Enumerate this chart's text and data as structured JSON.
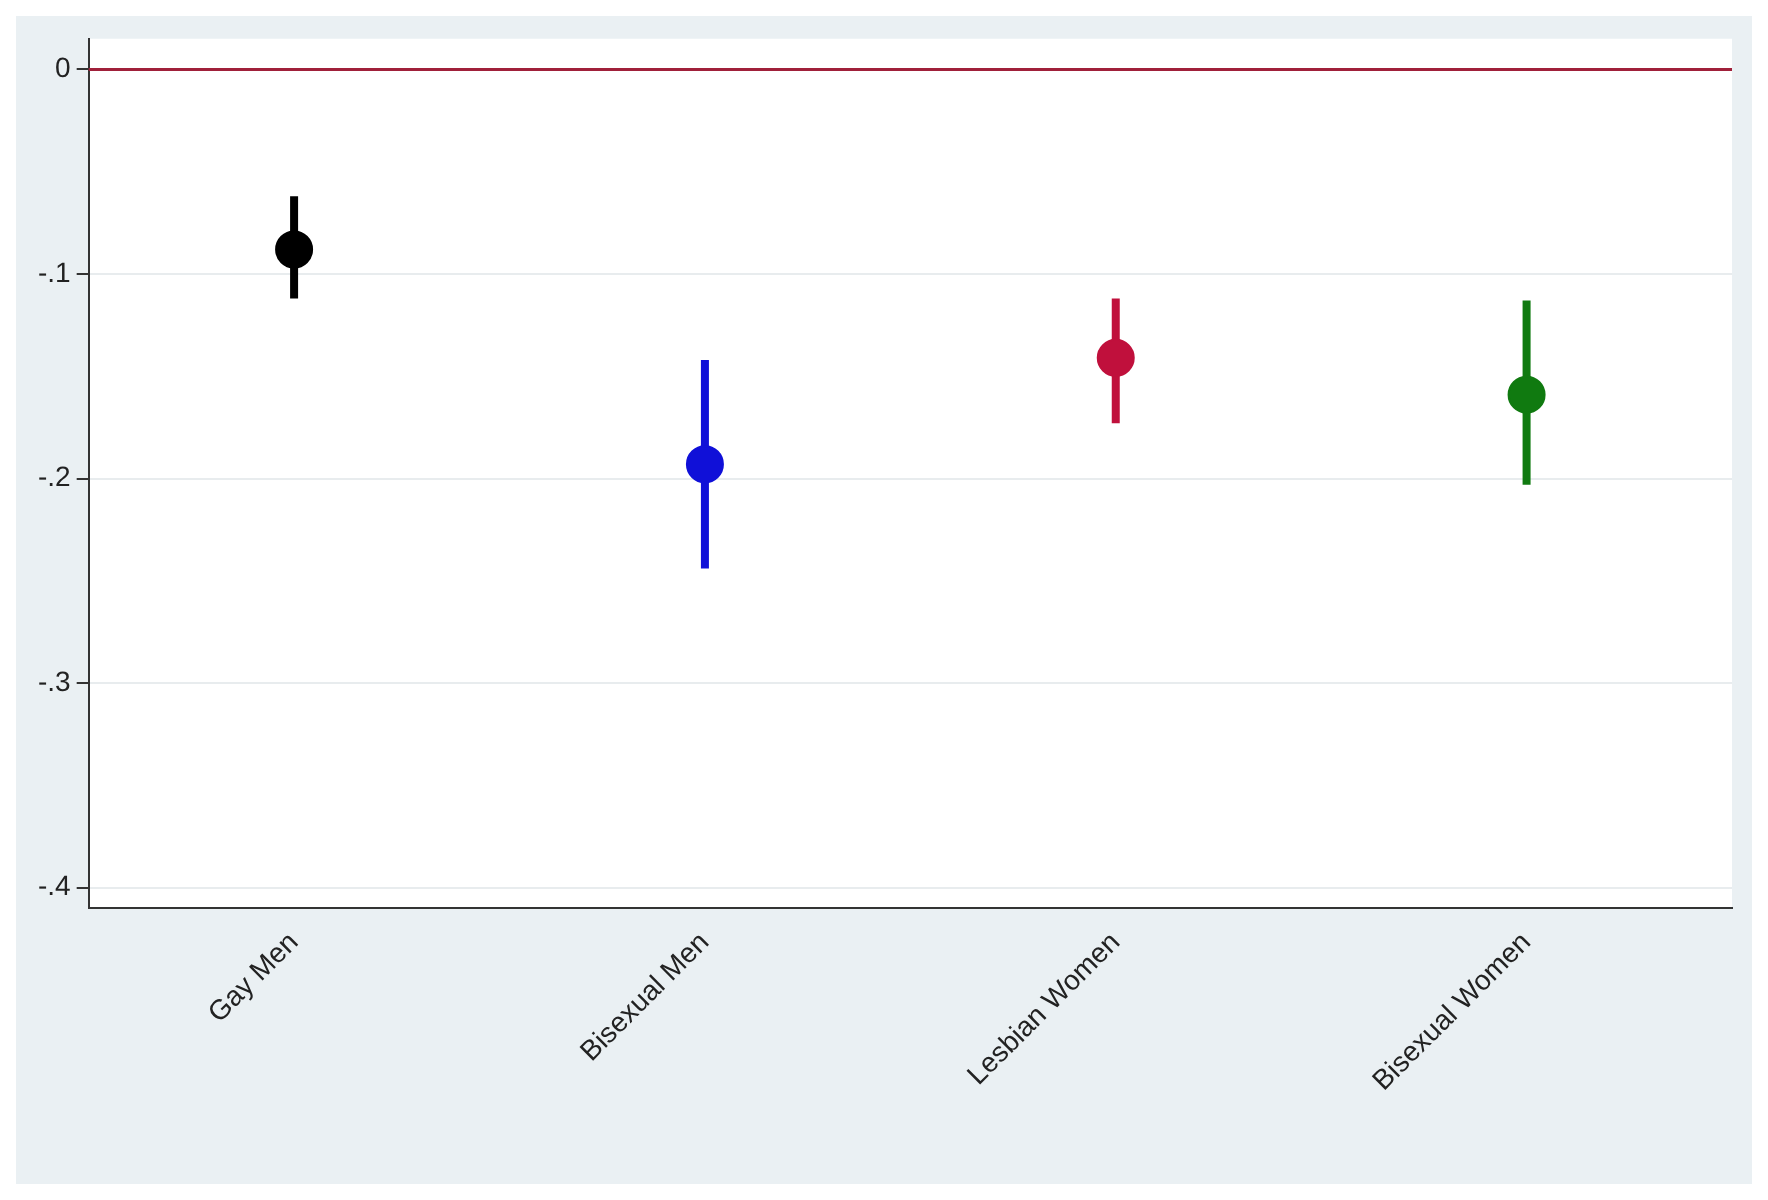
{
  "chart_data": {
    "type": "scatter",
    "categories": [
      "Gay Men",
      "Bisexual Men",
      "Lesbian Women",
      "Bisexual Women"
    ],
    "values": [
      -0.088,
      -0.193,
      -0.141,
      -0.159
    ],
    "colors": [
      "#000000",
      "#1010d8",
      "#c0103c",
      "#107a10"
    ],
    "errors": [
      [
        -0.112,
        -0.062
      ],
      [
        -0.244,
        -0.142
      ],
      [
        -0.173,
        -0.112
      ],
      [
        -0.203,
        -0.113
      ]
    ],
    "ylim": [
      -0.41,
      0.015
    ],
    "yticks": [
      {
        "value": 0,
        "label": "0"
      },
      {
        "value": -0.1,
        "label": "-.1"
      },
      {
        "value": -0.2,
        "label": "-.2"
      },
      {
        "value": -0.3,
        "label": "-.3"
      },
      {
        "value": -0.4,
        "label": "-.4"
      }
    ],
    "ref_lines": [
      {
        "axis": "y",
        "value": 0,
        "color": "#a0203a"
      }
    ],
    "grid": "y",
    "marker": "circle",
    "legend": false
  }
}
